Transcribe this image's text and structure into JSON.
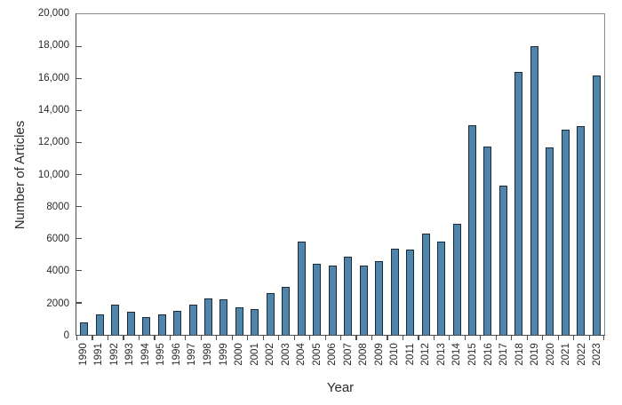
{
  "chart_data": {
    "type": "bar",
    "title": "",
    "xlabel": "Year",
    "ylabel": "Number of Articles",
    "categories": [
      "1990",
      "1991",
      "1992",
      "1993",
      "1994",
      "1995",
      "1996",
      "1997",
      "1998",
      "1999",
      "2000",
      "2001",
      "2002",
      "2003",
      "2004",
      "2005",
      "2006",
      "2007",
      "2008",
      "2009",
      "2010",
      "2011",
      "2012",
      "2013",
      "2014",
      "2015",
      "2016",
      "2017",
      "2018",
      "2019",
      "2020",
      "2021",
      "2022",
      "2023"
    ],
    "values": [
      800,
      1250,
      1900,
      1450,
      1100,
      1250,
      1500,
      1900,
      2300,
      2200,
      1700,
      1600,
      2600,
      3000,
      5800,
      4450,
      4300,
      4900,
      4300,
      4600,
      5400,
      5300,
      6300,
      5800,
      6900,
      13100,
      11750,
      9300,
      16400,
      18000,
      11700,
      12800,
      13000,
      16200
    ],
    "ylim": [
      0,
      20000
    ],
    "ytick_interval": 2000,
    "ytick_labels": [
      "0",
      "2000",
      "4000",
      "6000",
      "8000",
      "10,000",
      "12,000",
      "14,000",
      "16,000",
      "18,000",
      "20,000"
    ],
    "grid": false,
    "legend": "none",
    "colors": {
      "bar_fill": "#4f84ab",
      "bar_border": "#1b2a38",
      "axis_line": "#4d4d4d",
      "frame": "#8c8c8c",
      "text": "#2b2b2b"
    }
  }
}
